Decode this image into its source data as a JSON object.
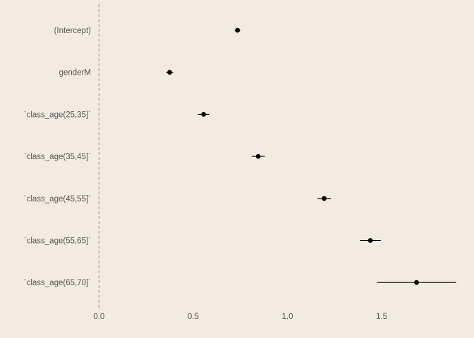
{
  "chart_data": {
    "type": "forest",
    "title": "",
    "xlabel": "",
    "ylabel": "",
    "categories": [
      "(Intercept)",
      "genderM",
      "`class_age(25,35]`",
      "`class_age(35,45]`",
      "`class_age(45,55]`",
      "`class_age(55,65]`",
      "`class_age(65,70]`"
    ],
    "estimates": [
      0.735,
      0.375,
      0.555,
      0.845,
      1.195,
      1.44,
      1.685
    ],
    "lower": [
      0.72,
      0.355,
      0.525,
      0.81,
      1.16,
      1.385,
      1.475
    ],
    "upper": [
      0.75,
      0.395,
      0.585,
      0.88,
      1.23,
      1.495,
      1.895
    ],
    "xlim": [
      -0.02,
      1.96
    ],
    "xticks": [
      0.0,
      0.5,
      1.0,
      1.5
    ],
    "xtick_labels": [
      "0.0",
      "0.5",
      "1.0",
      "1.5"
    ],
    "reference_line": 0,
    "grid": false,
    "legend": "none",
    "colors": {
      "background": "#f3ebe2",
      "point": "#000000",
      "reference_line": "#8a8a8a",
      "text": "#555555"
    }
  }
}
